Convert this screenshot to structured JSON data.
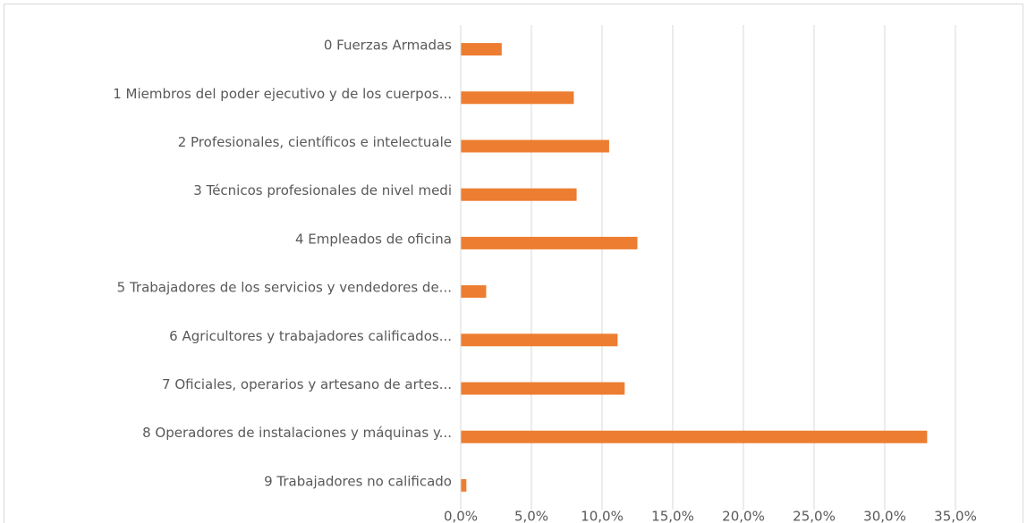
{
  "chart_data": {
    "type": "hbar",
    "categories": [
      "0 Fuerzas Armadas",
      "1 Miembros del poder ejecutivo y de los cuerpos...",
      "2 Profesionales, científicos e intelectuale",
      "3 Técnicos profesionales de nivel medi",
      "4 Empleados de oficina",
      "5 Trabajadores de los servicios y vendedores de...",
      "6 Agricultores y trabajadores calificados...",
      "7 Oficiales, operarios y artesano de artes...",
      "8 Operadores de instalaciones y máquinas y...",
      "9 Trabajadores no calificado"
    ],
    "values": [
      2.9,
      8.0,
      10.5,
      8.2,
      12.5,
      1.8,
      11.1,
      11.6,
      33.0,
      0.4
    ],
    "color": "#ed7d31",
    "xlim": [
      0,
      35
    ],
    "xticks": [
      {
        "value": 0,
        "label": "0,0%"
      },
      {
        "value": 5,
        "label": "5,0%"
      },
      {
        "value": 10,
        "label": "10,0%"
      },
      {
        "value": 15,
        "label": "15,0%"
      },
      {
        "value": 20,
        "label": "20,0%"
      },
      {
        "value": 25,
        "label": "25,0%"
      },
      {
        "value": 30,
        "label": "30,0%"
      },
      {
        "value": 35,
        "label": "35,0%"
      }
    ],
    "grid": true
  }
}
